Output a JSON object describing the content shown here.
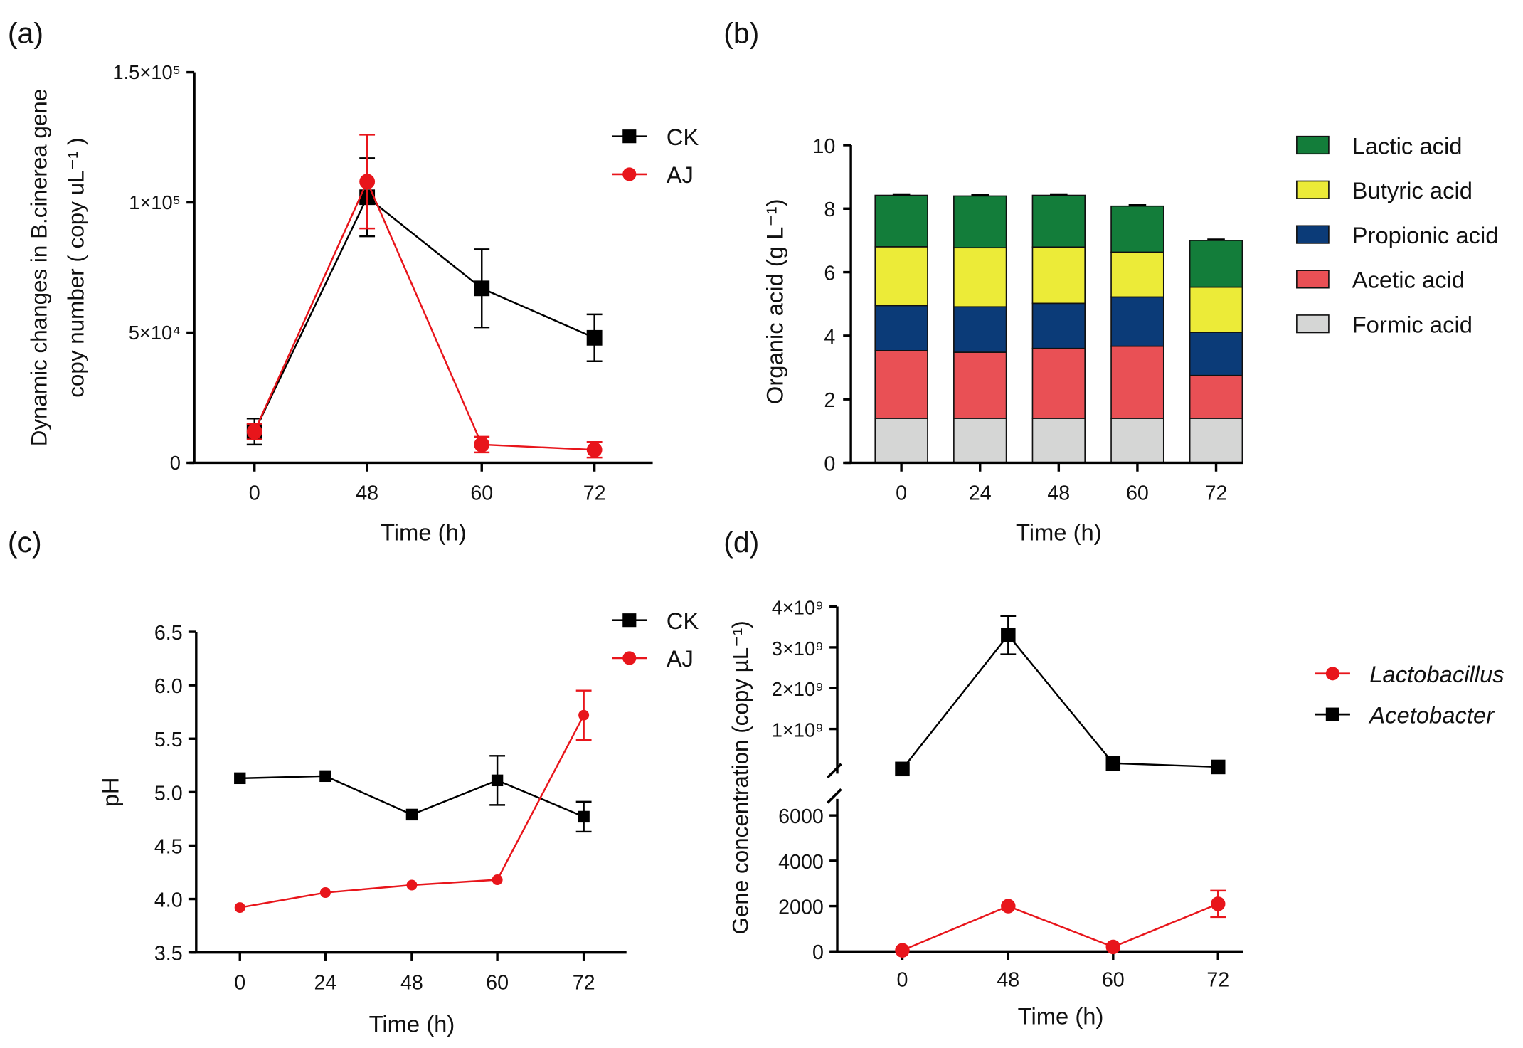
{
  "chart_data": [
    {
      "panel": "(a)",
      "type": "line",
      "ylabel_line1": "Dynamic changes in B.cinerea gene",
      "ylabel_line2": "copy number ( copy uL⁻¹ )",
      "xlabel": "Time (h)",
      "x": [
        0,
        48,
        60,
        72
      ],
      "x_ticks": [
        "0",
        "48",
        "60",
        "72"
      ],
      "ylim": [
        0,
        150000
      ],
      "y_ticks": [
        {
          "v": 0,
          "label": "0"
        },
        {
          "v": 50000,
          "label": "5×10⁴"
        },
        {
          "v": 100000,
          "label": "1×10⁵"
        },
        {
          "v": 150000,
          "label": "1.5×10⁵"
        }
      ],
      "legend_placement": "top-right",
      "series": [
        {
          "name": "CK",
          "color": "#000000",
          "marker": "square",
          "values": [
            12000,
            102000,
            67000,
            48000
          ],
          "errors": [
            5000,
            15000,
            15000,
            9000
          ]
        },
        {
          "name": "AJ",
          "color": "#e8151b",
          "marker": "circle",
          "values": [
            12000,
            108000,
            7000,
            5000
          ],
          "errors": [
            3000,
            18000,
            3000,
            3000
          ]
        }
      ]
    },
    {
      "panel": "(b)",
      "type": "bar",
      "stacked": true,
      "ylabel": "Organic acid (g L⁻¹)",
      "xlabel": "Time (h)",
      "categories": [
        "0",
        "24",
        "48",
        "60",
        "72"
      ],
      "ylim": [
        0,
        10
      ],
      "y_ticks": [
        0,
        2,
        4,
        6,
        8,
        10
      ],
      "legend_placement": "right",
      "series": [
        {
          "name": "Formic acid",
          "color": "#d5d6d5",
          "values": [
            1.4,
            1.4,
            1.4,
            1.4,
            1.4
          ]
        },
        {
          "name": "Acetic acid",
          "color": "#e95055",
          "values": [
            2.13,
            2.08,
            2.2,
            2.27,
            1.35
          ]
        },
        {
          "name": "Propionic acid",
          "color": "#0b3b78",
          "values": [
            1.42,
            1.43,
            1.42,
            1.55,
            1.36
          ]
        },
        {
          "name": "Butyric acid",
          "color": "#eceb38",
          "values": [
            1.85,
            1.86,
            1.77,
            1.41,
            1.42
          ]
        },
        {
          "name": "Lactic acid",
          "color": "#137d3a",
          "values": [
            1.62,
            1.63,
            1.63,
            1.45,
            1.47
          ]
        }
      ],
      "legend_order": [
        "Lactic acid",
        "Butyric acid",
        "Propionic acid",
        "Acetic acid",
        "Formic acid"
      ]
    },
    {
      "panel": "(c)",
      "type": "line",
      "ylabel": "pH",
      "xlabel": "Time (h)",
      "x": [
        0,
        24,
        48,
        60,
        72
      ],
      "x_ticks": [
        "0",
        "24",
        "48",
        "60",
        "72"
      ],
      "ylim": [
        3.5,
        6.5
      ],
      "y_ticks": [
        "3.5",
        "4.0",
        "4.5",
        "5.0",
        "5.5",
        "6.0",
        "6.5"
      ],
      "legend_placement": "top-right",
      "series": [
        {
          "name": "CK",
          "color": "#000000",
          "marker": "square",
          "values": [
            5.13,
            5.15,
            4.79,
            5.11,
            4.77
          ],
          "errors": [
            0,
            0,
            0,
            0.23,
            0.14
          ]
        },
        {
          "name": "AJ",
          "color": "#e8151b",
          "marker": "circle",
          "values": [
            3.92,
            4.06,
            4.13,
            4.18,
            5.72
          ],
          "errors": [
            0,
            0,
            0,
            0,
            0.23
          ]
        }
      ]
    },
    {
      "panel": "(d)",
      "type": "line",
      "broken_axis": true,
      "ylabel": "Gene concentration (copy µL⁻¹)",
      "xlabel": "Time (h)",
      "x": [
        0,
        48,
        60,
        72
      ],
      "x_ticks": [
        "0",
        "48",
        "60",
        "72"
      ],
      "ylim_lower": [
        0,
        7000
      ],
      "ylim_upper": [
        0,
        4000000000
      ],
      "y_ticks_lower": [
        {
          "v": 0,
          "label": "0"
        },
        {
          "v": 2000,
          "label": "2000"
        },
        {
          "v": 4000,
          "label": "4000"
        },
        {
          "v": 6000,
          "label": "6000"
        }
      ],
      "y_ticks_upper": [
        {
          "v": 1000000000,
          "label": "1×10⁹"
        },
        {
          "v": 2000000000,
          "label": "2×10⁹"
        },
        {
          "v": 3000000000,
          "label": "3×10⁹"
        },
        {
          "v": 4000000000,
          "label": "4×10⁹"
        }
      ],
      "legend_placement": "right",
      "series": [
        {
          "name": "Lactobacillus",
          "color": "#e8151b",
          "marker": "circle",
          "axis": "lower",
          "values": [
            50,
            2000,
            200,
            2100
          ],
          "errors": [
            0,
            0,
            0,
            580
          ]
        },
        {
          "name": "Acetobacter",
          "color": "#000000",
          "marker": "square",
          "axis": "upper",
          "values": [
            20000000,
            3300000000,
            160000000,
            70000000
          ],
          "errors": [
            0,
            470000000,
            0,
            0
          ]
        }
      ]
    }
  ]
}
